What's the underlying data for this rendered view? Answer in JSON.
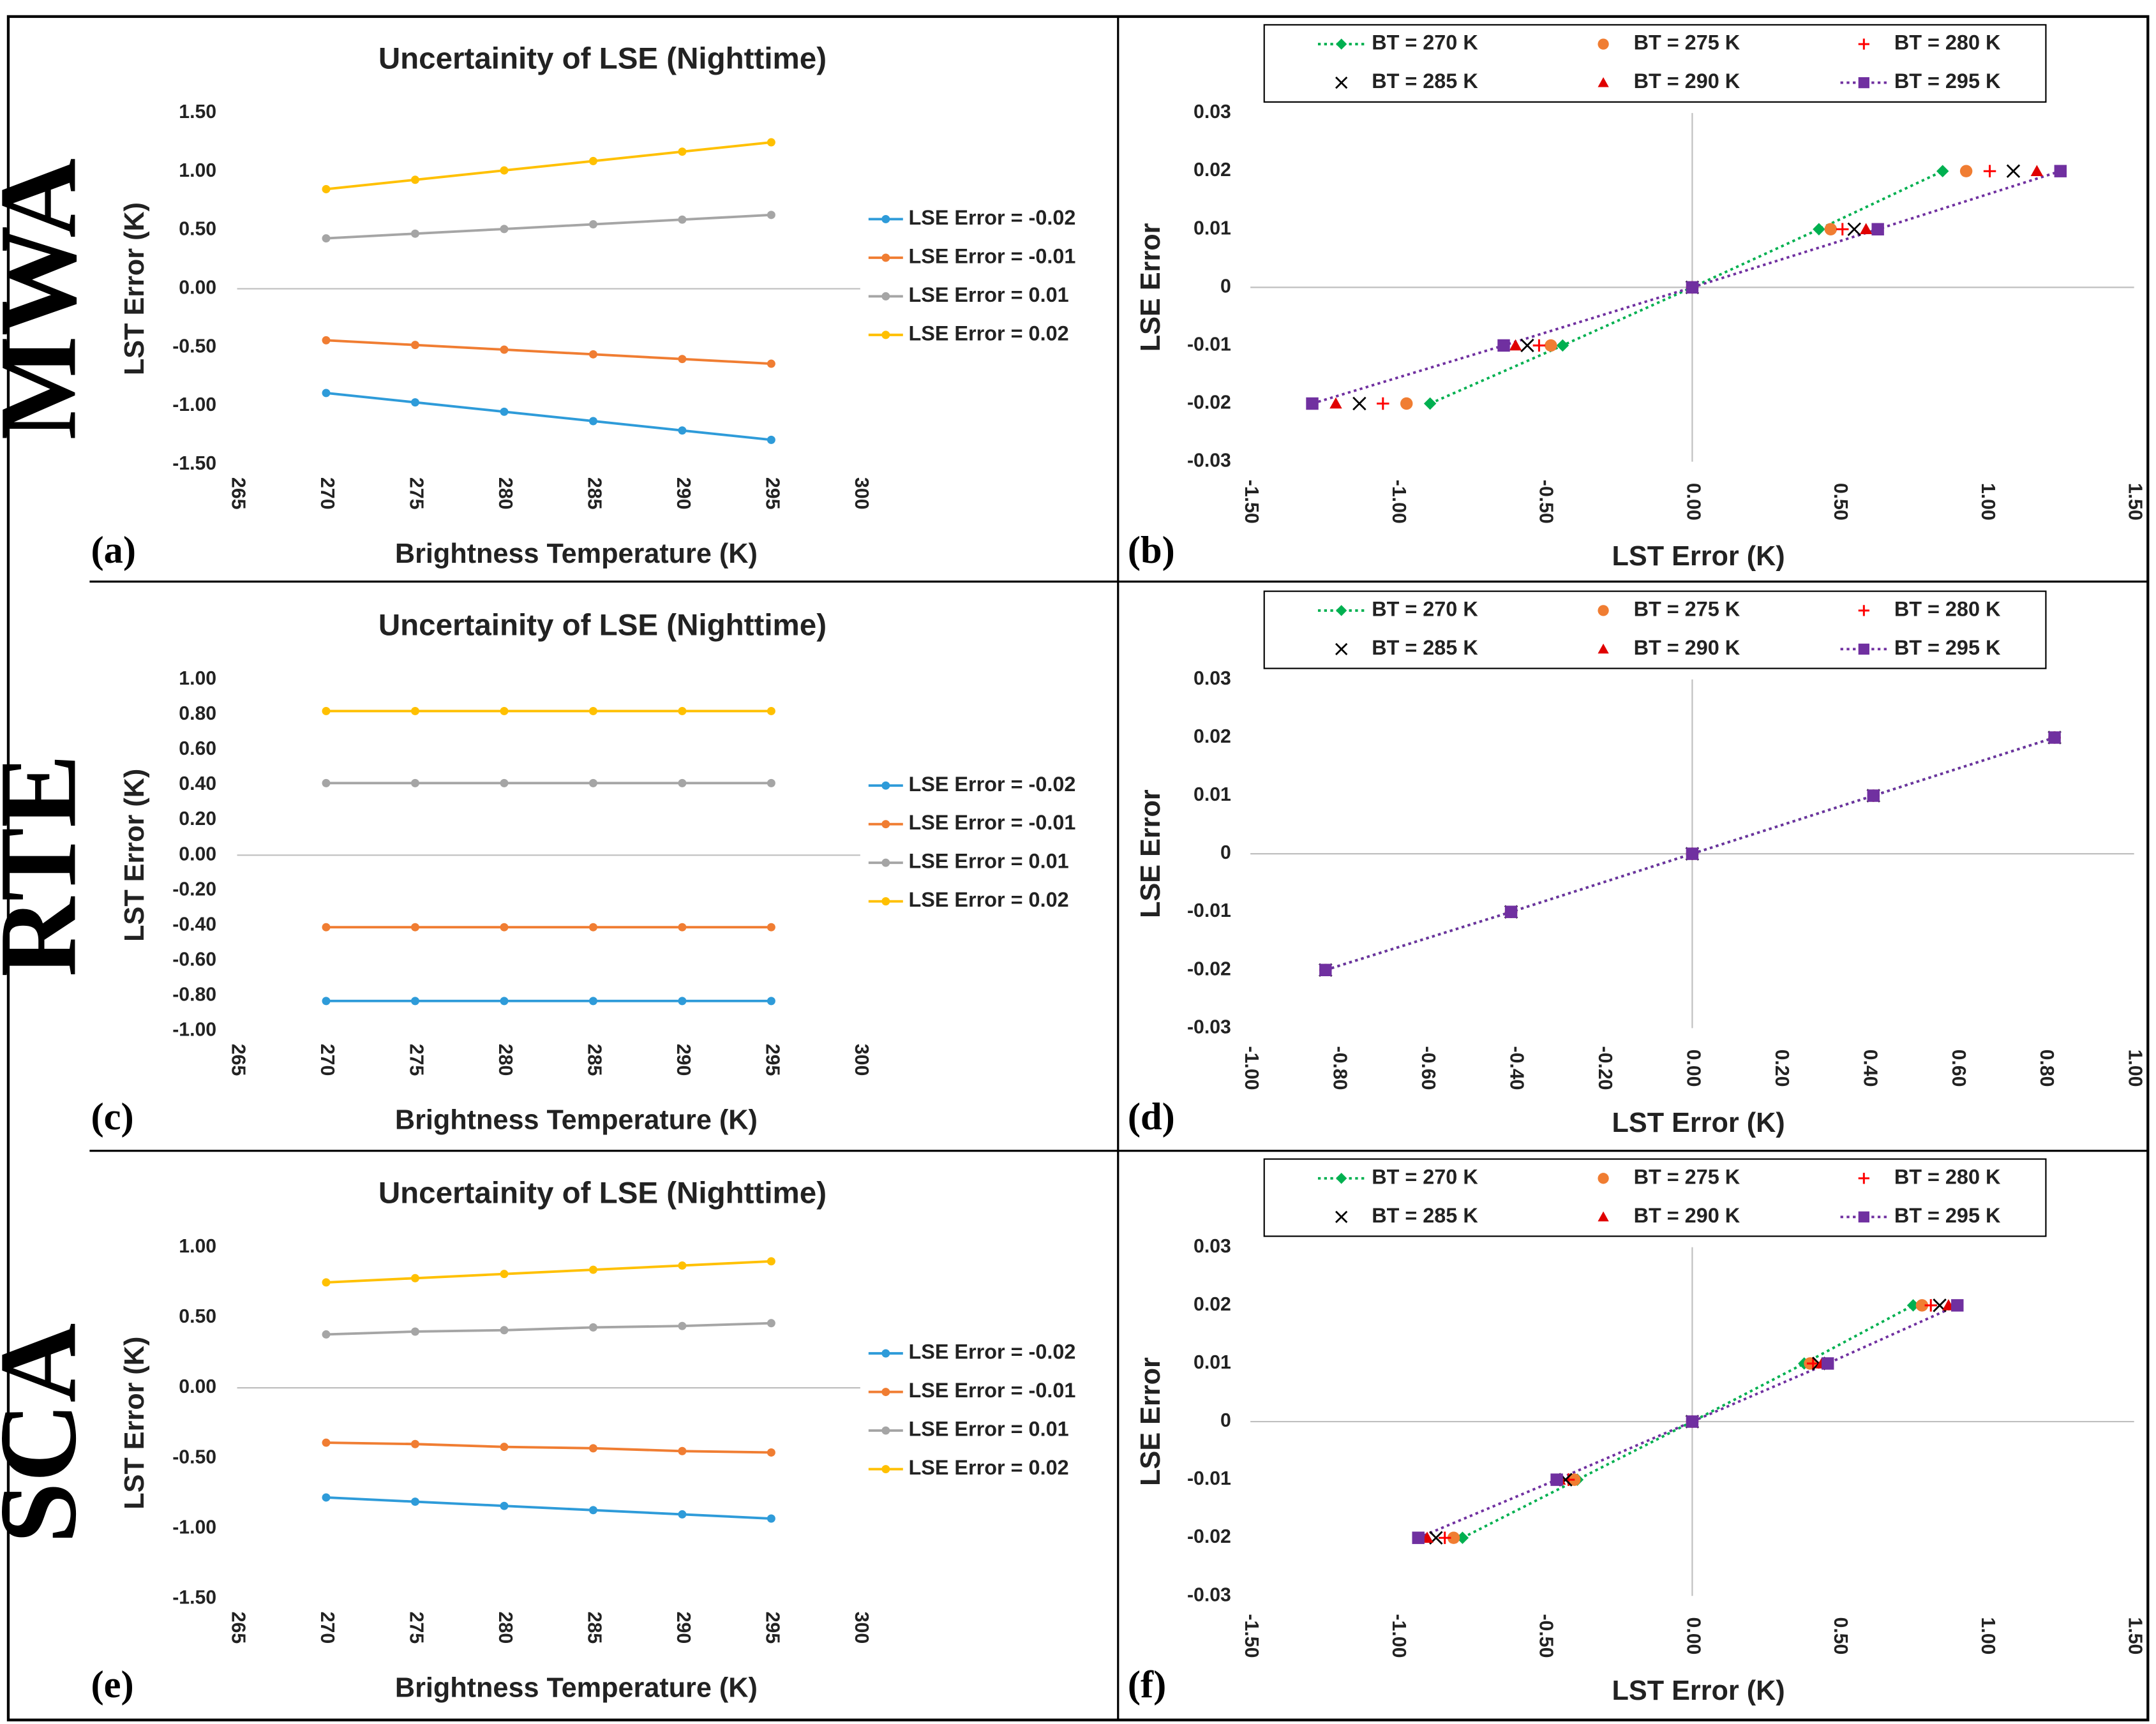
{
  "chart_data": [
    {
      "type": "line",
      "row_label": "MWA",
      "panel_label": "(a)",
      "title": "Uncertainity of LSE (Nighttime)",
      "xlabel": "Brightness Temperature (K)",
      "ylabel": "LST Error (K)",
      "x": [
        270,
        275,
        280,
        285,
        290,
        295
      ],
      "xlim": [
        265,
        300
      ],
      "xticks": [
        265,
        270,
        275,
        280,
        285,
        290,
        295,
        300
      ],
      "ylim": [
        -1.5,
        1.5
      ],
      "yticks": [
        {
          "value": -1.5,
          "label": "-1.50"
        },
        {
          "value": -1.0,
          "label": "-1.00"
        },
        {
          "value": -0.5,
          "label": "-0.50"
        },
        {
          "value": 0,
          "label": "0.00"
        },
        {
          "value": 0.5,
          "label": "0.50"
        },
        {
          "value": 1.0,
          "label": "1.00"
        },
        {
          "value": 1.5,
          "label": "1.50"
        }
      ],
      "grid": false,
      "legend": "right",
      "series": [
        {
          "name": "LSE Error = -0.02",
          "color": "#2e9bd9",
          "values": [
            -0.89,
            -0.97,
            -1.05,
            -1.13,
            -1.21,
            -1.29
          ]
        },
        {
          "name": "LSE Error = -0.01",
          "color": "#f07d32",
          "values": [
            -0.44,
            -0.48,
            -0.52,
            -0.56,
            -0.6,
            -0.64
          ]
        },
        {
          "name": "LSE Error = 0.01",
          "color": "#a5a5a5",
          "values": [
            0.43,
            0.47,
            0.51,
            0.55,
            0.59,
            0.63
          ]
        },
        {
          "name": "LSE Error = 0.02",
          "color": "#ffc000",
          "values": [
            0.85,
            0.93,
            1.01,
            1.09,
            1.17,
            1.25
          ]
        }
      ]
    },
    {
      "type": "scatter",
      "panel_label": "(b)",
      "xlabel": "LST Error (K)",
      "ylabel": "LSE Error",
      "xlim": [
        -1.5,
        1.5
      ],
      "xticks": [
        {
          "value": -1.5,
          "label": "-1.50"
        },
        {
          "value": -1.0,
          "label": "-1.00"
        },
        {
          "value": -0.5,
          "label": "-0.50"
        },
        {
          "value": 0,
          "label": "0.00"
        },
        {
          "value": 0.5,
          "label": "0.50"
        },
        {
          "value": 1.0,
          "label": "1.00"
        },
        {
          "value": 1.5,
          "label": "1.50"
        }
      ],
      "ylim": [
        -0.03,
        0.03
      ],
      "yticks": [
        -0.03,
        -0.02,
        -0.01,
        0,
        0.01,
        0.02,
        0.03
      ],
      "grid": false,
      "legend": "top",
      "series": [
        {
          "name": "BT = 270 K",
          "color": "#00b050",
          "marker": "diamond",
          "line": true,
          "x": [
            -0.89,
            -0.44,
            0,
            0.43,
            0.85
          ],
          "values": [
            -0.02,
            -0.01,
            0,
            0.01,
            0.02
          ]
        },
        {
          "name": "BT = 275 K",
          "color": "#f07d32",
          "marker": "circle",
          "line": false,
          "x": [
            -0.97,
            -0.48,
            0,
            0.47,
            0.93
          ],
          "values": [
            -0.02,
            -0.01,
            0,
            0.01,
            0.02
          ]
        },
        {
          "name": "BT = 280 K",
          "color": "#ff0000",
          "marker": "plus",
          "line": false,
          "x": [
            -1.05,
            -0.52,
            0,
            0.51,
            1.01
          ],
          "values": [
            -0.02,
            -0.01,
            0,
            0.01,
            0.02
          ]
        },
        {
          "name": "BT = 285 K",
          "color": "#000000",
          "marker": "cross",
          "line": false,
          "x": [
            -1.13,
            -0.56,
            0,
            0.55,
            1.09
          ],
          "values": [
            -0.02,
            -0.01,
            0,
            0.01,
            0.02
          ]
        },
        {
          "name": "BT = 290 K",
          "color": "#e00000",
          "marker": "triangle",
          "line": false,
          "x": [
            -1.21,
            -0.6,
            0,
            0.59,
            1.17
          ],
          "values": [
            -0.02,
            -0.01,
            0,
            0.01,
            0.02
          ]
        },
        {
          "name": "BT = 295 K",
          "color": "#7030a0",
          "marker": "square",
          "line": true,
          "x": [
            -1.29,
            -0.64,
            0,
            0.63,
            1.25
          ],
          "values": [
            -0.02,
            -0.01,
            0,
            0.01,
            0.02
          ]
        }
      ]
    },
    {
      "type": "line",
      "row_label": "RTE",
      "panel_label": "(c)",
      "title": "Uncertainity of LSE (Nighttime)",
      "xlabel": "Brightness Temperature (K)",
      "ylabel": "LST Error (K)",
      "x": [
        270,
        275,
        280,
        285,
        290,
        295
      ],
      "xlim": [
        265,
        300
      ],
      "xticks": [
        265,
        270,
        275,
        280,
        285,
        290,
        295,
        300
      ],
      "ylim": [
        -1.0,
        1.0
      ],
      "yticks": [
        {
          "value": -1.0,
          "label": "-1.00"
        },
        {
          "value": -0.8,
          "label": "-0.80"
        },
        {
          "value": -0.6,
          "label": "-0.60"
        },
        {
          "value": -0.4,
          "label": "-0.40"
        },
        {
          "value": -0.2,
          "label": "-0.20"
        },
        {
          "value": 0,
          "label": "0.00"
        },
        {
          "value": 0.2,
          "label": "0.20"
        },
        {
          "value": 0.4,
          "label": "0.40"
        },
        {
          "value": 0.6,
          "label": "0.60"
        },
        {
          "value": 0.8,
          "label": "0.80"
        },
        {
          "value": 1.0,
          "label": "1.00"
        }
      ],
      "grid": false,
      "legend": "right",
      "series": [
        {
          "name": "LSE Error = -0.02",
          "color": "#2e9bd9",
          "values": [
            -0.83,
            -0.83,
            -0.83,
            -0.83,
            -0.83,
            -0.83
          ]
        },
        {
          "name": "LSE Error = -0.01",
          "color": "#f07d32",
          "values": [
            -0.41,
            -0.41,
            -0.41,
            -0.41,
            -0.41,
            -0.41
          ]
        },
        {
          "name": "LSE Error = 0.01",
          "color": "#a5a5a5",
          "values": [
            0.41,
            0.41,
            0.41,
            0.41,
            0.41,
            0.41
          ]
        },
        {
          "name": "LSE Error = 0.02",
          "color": "#ffc000",
          "values": [
            0.82,
            0.82,
            0.82,
            0.82,
            0.82,
            0.82
          ]
        }
      ]
    },
    {
      "type": "scatter",
      "panel_label": "(d)",
      "xlabel": "LST Error (K)",
      "ylabel": "LSE Error",
      "xlim": [
        -1.0,
        1.0
      ],
      "xticks": [
        {
          "value": -1.0,
          "label": "-1.00"
        },
        {
          "value": -0.8,
          "label": "-0.80"
        },
        {
          "value": -0.6,
          "label": "-0.60"
        },
        {
          "value": -0.4,
          "label": "-0.40"
        },
        {
          "value": -0.2,
          "label": "-0.20"
        },
        {
          "value": 0,
          "label": "0.00"
        },
        {
          "value": 0.2,
          "label": "0.20"
        },
        {
          "value": 0.4,
          "label": "0.40"
        },
        {
          "value": 0.6,
          "label": "0.60"
        },
        {
          "value": 0.8,
          "label": "0.80"
        },
        {
          "value": 1.0,
          "label": "1.00"
        }
      ],
      "ylim": [
        -0.03,
        0.03
      ],
      "yticks": [
        -0.03,
        -0.02,
        -0.01,
        0,
        0.01,
        0.02,
        0.03
      ],
      "grid": false,
      "legend": "top",
      "series": [
        {
          "name": "BT = 270 K",
          "color": "#00b050",
          "marker": "diamond",
          "line": true,
          "x": [
            -0.83,
            -0.41,
            0,
            0.41,
            0.82
          ],
          "values": [
            -0.02,
            -0.01,
            0,
            0.01,
            0.02
          ]
        },
        {
          "name": "BT = 275 K",
          "color": "#f07d32",
          "marker": "circle",
          "line": false,
          "x": [
            -0.83,
            -0.41,
            0,
            0.41,
            0.82
          ],
          "values": [
            -0.02,
            -0.01,
            0,
            0.01,
            0.02
          ]
        },
        {
          "name": "BT = 280 K",
          "color": "#ff0000",
          "marker": "plus",
          "line": false,
          "x": [
            -0.83,
            -0.41,
            0,
            0.41,
            0.82
          ],
          "values": [
            -0.02,
            -0.01,
            0,
            0.01,
            0.02
          ]
        },
        {
          "name": "BT = 285 K",
          "color": "#000000",
          "marker": "cross",
          "line": false,
          "x": [
            -0.83,
            -0.41,
            0,
            0.41,
            0.82
          ],
          "values": [
            -0.02,
            -0.01,
            0,
            0.01,
            0.02
          ]
        },
        {
          "name": "BT = 290 K",
          "color": "#e00000",
          "marker": "triangle",
          "line": false,
          "x": [
            -0.83,
            -0.41,
            0,
            0.41,
            0.82
          ],
          "values": [
            -0.02,
            -0.01,
            0,
            0.01,
            0.02
          ]
        },
        {
          "name": "BT = 295 K",
          "color": "#7030a0",
          "marker": "square",
          "line": true,
          "x": [
            -0.83,
            -0.41,
            0,
            0.41,
            0.82
          ],
          "values": [
            -0.02,
            -0.01,
            0,
            0.01,
            0.02
          ]
        }
      ]
    },
    {
      "type": "line",
      "row_label": "SCA",
      "panel_label": "(e)",
      "title": "Uncertainity of LSE (Nighttime)",
      "xlabel": "Brightness Temperature (K)",
      "ylabel": "LST Error (K)",
      "x": [
        270,
        275,
        280,
        285,
        290,
        295
      ],
      "xlim": [
        265,
        300
      ],
      "xticks": [
        265,
        270,
        275,
        280,
        285,
        290,
        295,
        300
      ],
      "ylim": [
        -1.5,
        1.0
      ],
      "yticks": [
        {
          "value": -1.5,
          "label": "-1.50"
        },
        {
          "value": -1.0,
          "label": "-1.00"
        },
        {
          "value": -0.5,
          "label": "-0.50"
        },
        {
          "value": 0,
          "label": "0.00"
        },
        {
          "value": 0.5,
          "label": "0.50"
        },
        {
          "value": 1.0,
          "label": "1.00"
        }
      ],
      "grid": false,
      "legend": "right",
      "series": [
        {
          "name": "LSE Error = -0.02",
          "color": "#2e9bd9",
          "values": [
            -0.78,
            -0.81,
            -0.84,
            -0.87,
            -0.9,
            -0.93
          ]
        },
        {
          "name": "LSE Error = -0.01",
          "color": "#f07d32",
          "values": [
            -0.39,
            -0.4,
            -0.42,
            -0.43,
            -0.45,
            -0.46
          ]
        },
        {
          "name": "LSE Error = 0.01",
          "color": "#a5a5a5",
          "values": [
            0.38,
            0.4,
            0.41,
            0.43,
            0.44,
            0.46
          ]
        },
        {
          "name": "LSE Error = 0.02",
          "color": "#ffc000",
          "values": [
            0.75,
            0.78,
            0.81,
            0.84,
            0.87,
            0.9
          ]
        }
      ]
    },
    {
      "type": "scatter",
      "panel_label": "(f)",
      "xlabel": "LST Error (K)",
      "ylabel": "LSE Error",
      "xlim": [
        -1.5,
        1.5
      ],
      "xticks": [
        {
          "value": -1.5,
          "label": "-1.50"
        },
        {
          "value": -1.0,
          "label": "-1.00"
        },
        {
          "value": -0.5,
          "label": "-0.50"
        },
        {
          "value": 0,
          "label": "0.00"
        },
        {
          "value": 0.5,
          "label": "0.50"
        },
        {
          "value": 1.0,
          "label": "1.00"
        },
        {
          "value": 1.5,
          "label": "1.50"
        }
      ],
      "ylim": [
        -0.03,
        0.03
      ],
      "yticks": [
        -0.03,
        -0.02,
        -0.01,
        0,
        0.01,
        0.02,
        0.03
      ],
      "grid": false,
      "legend": "top",
      "series": [
        {
          "name": "BT = 270 K",
          "color": "#00b050",
          "marker": "diamond",
          "line": true,
          "x": [
            -0.78,
            -0.39,
            0,
            0.38,
            0.75
          ],
          "values": [
            -0.02,
            -0.01,
            0,
            0.01,
            0.02
          ]
        },
        {
          "name": "BT = 275 K",
          "color": "#f07d32",
          "marker": "circle",
          "line": false,
          "x": [
            -0.81,
            -0.4,
            0,
            0.4,
            0.78
          ],
          "values": [
            -0.02,
            -0.01,
            0,
            0.01,
            0.02
          ]
        },
        {
          "name": "BT = 280 K",
          "color": "#ff0000",
          "marker": "plus",
          "line": false,
          "x": [
            -0.84,
            -0.42,
            0,
            0.41,
            0.81
          ],
          "values": [
            -0.02,
            -0.01,
            0,
            0.01,
            0.02
          ]
        },
        {
          "name": "BT = 285 K",
          "color": "#000000",
          "marker": "cross",
          "line": false,
          "x": [
            -0.87,
            -0.43,
            0,
            0.43,
            0.84
          ],
          "values": [
            -0.02,
            -0.01,
            0,
            0.01,
            0.02
          ]
        },
        {
          "name": "BT = 290 K",
          "color": "#e00000",
          "marker": "triangle",
          "line": false,
          "x": [
            -0.9,
            -0.45,
            0,
            0.44,
            0.87
          ],
          "values": [
            -0.02,
            -0.01,
            0,
            0.01,
            0.02
          ]
        },
        {
          "name": "BT = 295 K",
          "color": "#7030a0",
          "marker": "square",
          "line": true,
          "x": [
            -0.93,
            -0.46,
            0,
            0.46,
            0.9
          ],
          "values": [
            -0.02,
            -0.01,
            0,
            0.01,
            0.02
          ]
        }
      ]
    }
  ]
}
